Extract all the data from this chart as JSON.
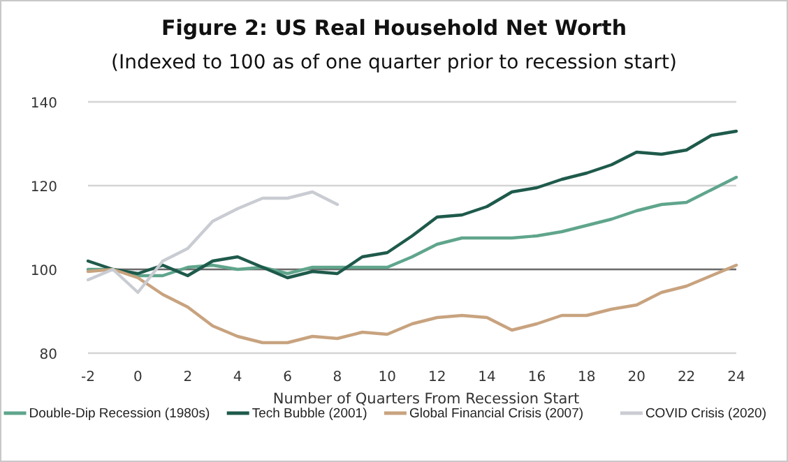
{
  "chart_data": {
    "type": "line",
    "title": "Figure 2: US Real Household Net Worth",
    "subtitle": "(Indexed to 100 as of one quarter prior to recession start)",
    "xlabel": "Number of Quarters From Recession Start",
    "x": [
      -2,
      -1,
      0,
      1,
      2,
      3,
      4,
      5,
      6,
      7,
      8,
      9,
      10,
      11,
      12,
      13,
      14,
      15,
      16,
      17,
      18,
      19,
      20,
      21,
      22,
      23,
      24
    ],
    "series": [
      {
        "name": "Double-Dip Recession (1980s)",
        "color": "#5fa58c",
        "values": [
          100,
          100,
          98.5,
          98.5,
          100.5,
          101,
          100,
          100.5,
          99,
          100.5,
          100.5,
          100.5,
          100.5,
          103,
          106,
          107.5,
          107.5,
          107.5,
          108,
          109,
          110.5,
          112,
          114,
          115.5,
          116,
          119,
          122
        ]
      },
      {
        "name": "Tech Bubble (2001)",
        "color": "#1e5a4b",
        "values": [
          102,
          100,
          99,
          101,
          98.5,
          102,
          103,
          100.5,
          98,
          99.5,
          99,
          103,
          104,
          108,
          112.5,
          113,
          115,
          118.5,
          119.5,
          121.5,
          123,
          125,
          128,
          127.5,
          128.5,
          132,
          133
        ]
      },
      {
        "name": "Global Financial Crisis (2007)",
        "color": "#c8a37f",
        "values": [
          99.5,
          100,
          98,
          94,
          91,
          86.5,
          84,
          82.5,
          82.5,
          84,
          83.5,
          85,
          84.5,
          87,
          88.5,
          89,
          88.5,
          85.5,
          87,
          89,
          89,
          90.5,
          91.5,
          94.5,
          96,
          98.5,
          101
        ]
      },
      {
        "name": "COVID Crisis (2020)",
        "color": "#c9ccd2",
        "values": [
          97.5,
          100,
          94.5,
          102,
          105,
          111.5,
          114.5,
          117,
          117,
          118.5,
          115.5,
          null,
          null,
          null,
          null,
          null,
          null,
          null,
          null,
          null,
          null,
          null,
          null,
          null,
          null,
          null,
          null
        ]
      }
    ],
    "xlim": [
      -2,
      24
    ],
    "xticks": [
      -2,
      0,
      2,
      4,
      6,
      8,
      10,
      12,
      14,
      16,
      18,
      20,
      22,
      24
    ],
    "ylim": [
      80,
      140
    ],
    "yticks": [
      80,
      100,
      120,
      140
    ],
    "ref_lines": [
      {
        "axis": "y",
        "value": 100,
        "color": "#6b6b6b"
      }
    ],
    "grid": "y",
    "legend": "bottom",
    "marker": "none",
    "line_style": "solid"
  }
}
